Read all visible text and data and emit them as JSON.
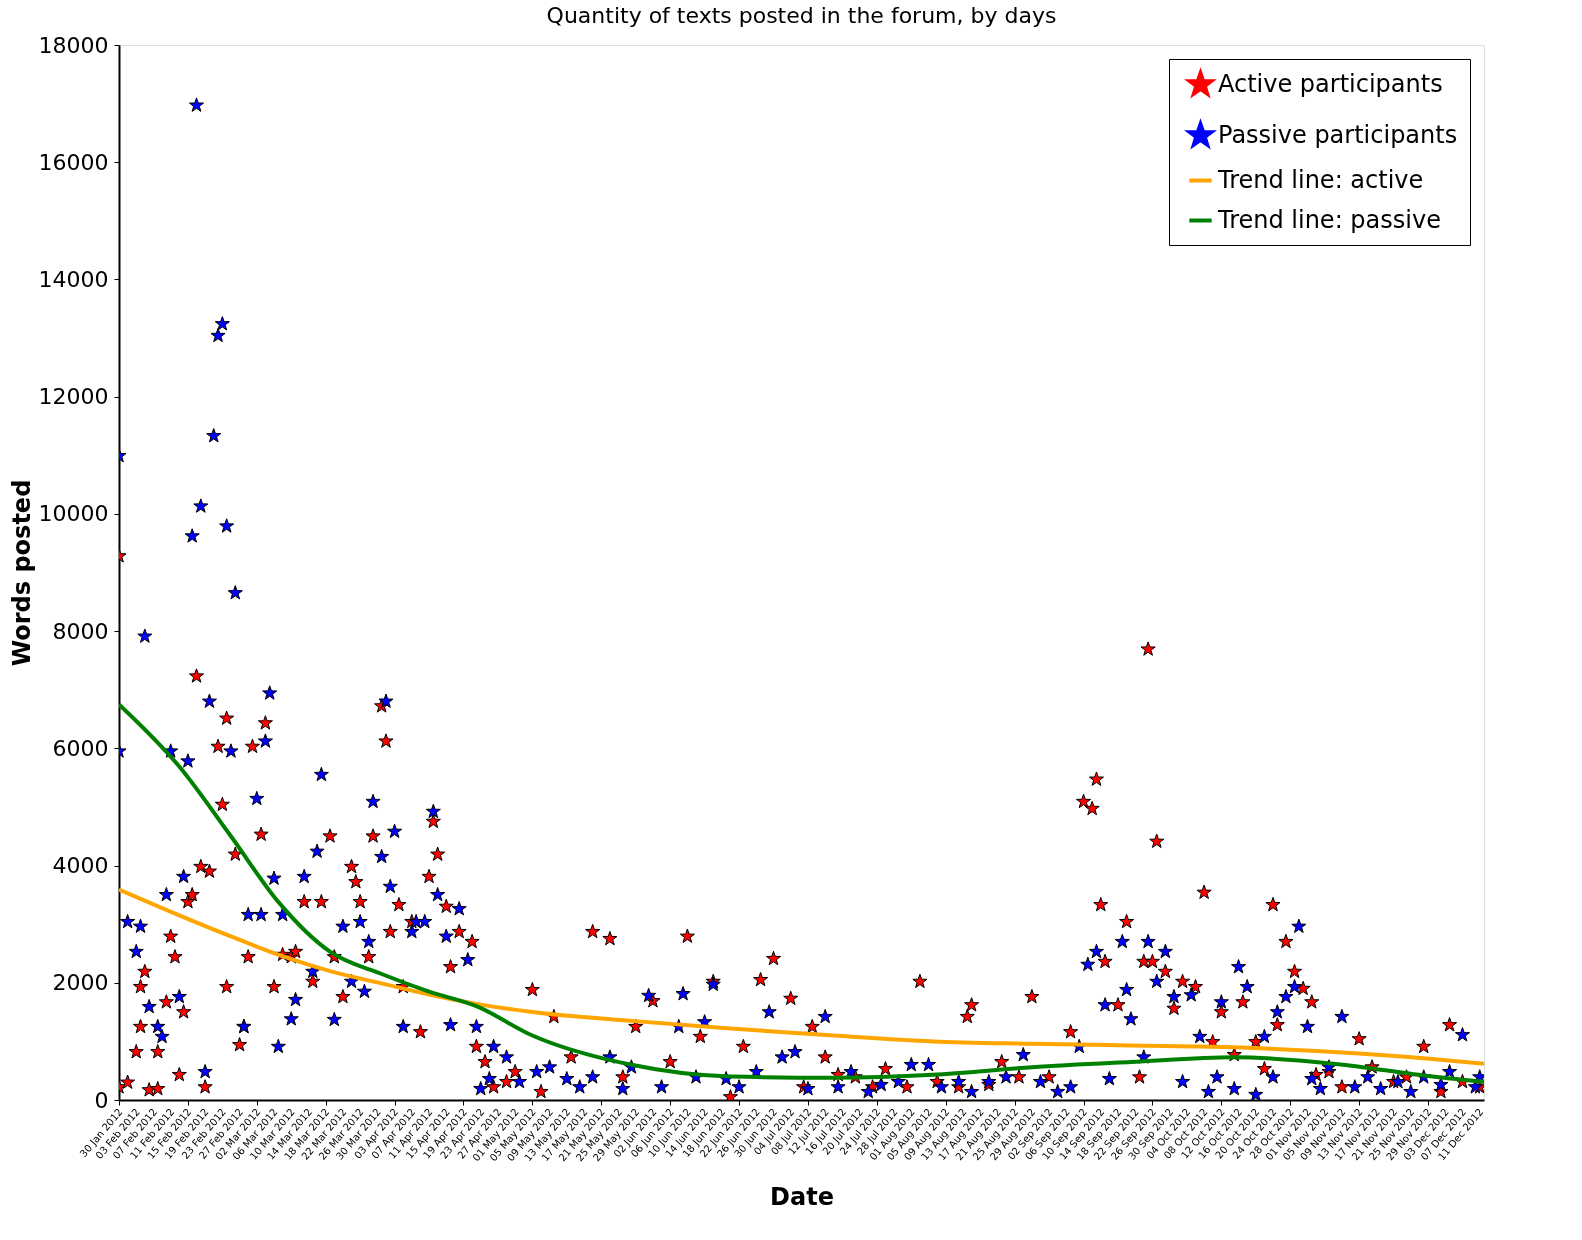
{
  "chart_data": {
    "type": "scatter",
    "title": "Quantity of texts posted in the forum, by days",
    "xlabel": "Date",
    "ylabel": "Words posted",
    "legend": "top right",
    "grid": false,
    "marker": "star",
    "xlim": [
      "2012-01-30",
      "2012-12-12"
    ],
    "xticks": [
      {
        "value": "2012-01-30",
        "label": "30 Jan 2012"
      },
      {
        "value": "2012-02-03",
        "label": "03 Feb 2012"
      },
      {
        "value": "2012-02-07",
        "label": "07 Feb 2012"
      },
      {
        "value": "2012-02-11",
        "label": "11 Feb 2012"
      },
      {
        "value": "2012-02-15",
        "label": "15 Feb 2012"
      },
      {
        "value": "2012-02-19",
        "label": "19 Feb 2012"
      },
      {
        "value": "2012-02-23",
        "label": "23 Feb 2012"
      },
      {
        "value": "2012-02-27",
        "label": "27 Feb 2012"
      },
      {
        "value": "2012-03-02",
        "label": "02 Mar 2012"
      },
      {
        "value": "2012-03-06",
        "label": "06 Mar 2012"
      },
      {
        "value": "2012-03-10",
        "label": "10 Mar 2012"
      },
      {
        "value": "2012-03-14",
        "label": "14 Mar 2012"
      },
      {
        "value": "2012-03-18",
        "label": "18 Mar 2012"
      },
      {
        "value": "2012-03-22",
        "label": "22 Mar 2012"
      },
      {
        "value": "2012-03-26",
        "label": "26 Mar 2012"
      },
      {
        "value": "2012-03-30",
        "label": "30 Mar 2012"
      },
      {
        "value": "2012-04-03",
        "label": "03 Apr 2012"
      },
      {
        "value": "2012-04-07",
        "label": "07 Apr 2012"
      },
      {
        "value": "2012-04-11",
        "label": "11 Apr 2012"
      },
      {
        "value": "2012-04-15",
        "label": "15 Apr 2012"
      },
      {
        "value": "2012-04-19",
        "label": "19 Apr 2012"
      },
      {
        "value": "2012-04-23",
        "label": "23 Apr 2012"
      },
      {
        "value": "2012-04-27",
        "label": "27 Apr 2012"
      },
      {
        "value": "2012-05-01",
        "label": "01 May 2012"
      },
      {
        "value": "2012-05-05",
        "label": "05 May 2012"
      },
      {
        "value": "2012-05-09",
        "label": "09 May 2012"
      },
      {
        "value": "2012-05-13",
        "label": "13 May 2012"
      },
      {
        "value": "2012-05-17",
        "label": "17 May 2012"
      },
      {
        "value": "2012-05-21",
        "label": "21 May 2012"
      },
      {
        "value": "2012-05-25",
        "label": "25 May 2012"
      },
      {
        "value": "2012-05-29",
        "label": "29 May 2012"
      },
      {
        "value": "2012-06-02",
        "label": "02 Jun 2012"
      },
      {
        "value": "2012-06-06",
        "label": "06 Jun 2012"
      },
      {
        "value": "2012-06-10",
        "label": "10 Jun 2012"
      },
      {
        "value": "2012-06-14",
        "label": "14 Jun 2012"
      },
      {
        "value": "2012-06-18",
        "label": "18 Jun 2012"
      },
      {
        "value": "2012-06-22",
        "label": "22 Jun 2012"
      },
      {
        "value": "2012-06-26",
        "label": "26 Jun 2012"
      },
      {
        "value": "2012-06-30",
        "label": "30 Jun 2012"
      },
      {
        "value": "2012-07-04",
        "label": "04 Jul 2012"
      },
      {
        "value": "2012-07-08",
        "label": "08 Jul 2012"
      },
      {
        "value": "2012-07-12",
        "label": "12 Jul 2012"
      },
      {
        "value": "2012-07-16",
        "label": "16 Jul 2012"
      },
      {
        "value": "2012-07-20",
        "label": "20 Jul 2012"
      },
      {
        "value": "2012-07-24",
        "label": "24 Jul 2012"
      },
      {
        "value": "2012-07-28",
        "label": "28 Jul 2012"
      },
      {
        "value": "2012-08-01",
        "label": "01 Aug 2012"
      },
      {
        "value": "2012-08-05",
        "label": "05 Aug 2012"
      },
      {
        "value": "2012-08-09",
        "label": "09 Aug 2012"
      },
      {
        "value": "2012-08-13",
        "label": "13 Aug 2012"
      },
      {
        "value": "2012-08-17",
        "label": "17 Aug 2012"
      },
      {
        "value": "2012-08-21",
        "label": "21 Aug 2012"
      },
      {
        "value": "2012-08-25",
        "label": "25 Aug 2012"
      },
      {
        "value": "2012-08-29",
        "label": "29 Aug 2012"
      },
      {
        "value": "2012-09-02",
        "label": "02 Sep 2012"
      },
      {
        "value": "2012-09-06",
        "label": "06 Sep 2012"
      },
      {
        "value": "2012-09-10",
        "label": "10 Sep 2012"
      },
      {
        "value": "2012-09-14",
        "label": "14 Sep 2012"
      },
      {
        "value": "2012-09-18",
        "label": "18 Sep 2012"
      },
      {
        "value": "2012-09-22",
        "label": "22 Sep 2012"
      },
      {
        "value": "2012-09-26",
        "label": "26 Sep 2012"
      },
      {
        "value": "2012-09-30",
        "label": "30 Sep 2012"
      },
      {
        "value": "2012-10-04",
        "label": "04 Oct 2012"
      },
      {
        "value": "2012-10-08",
        "label": "08 Oct 2012"
      },
      {
        "value": "2012-10-12",
        "label": "12 Oct 2012"
      },
      {
        "value": "2012-10-16",
        "label": "16 Oct 2012"
      },
      {
        "value": "2012-10-20",
        "label": "20 Oct 2012"
      },
      {
        "value": "2012-10-24",
        "label": "24 Oct 2012"
      },
      {
        "value": "2012-10-28",
        "label": "28 Oct 2012"
      },
      {
        "value": "2012-11-01",
        "label": "01 Nov 2012"
      },
      {
        "value": "2012-11-05",
        "label": "05 Nov 2012"
      },
      {
        "value": "2012-11-09",
        "label": "09 Nov 2012"
      },
      {
        "value": "2012-11-13",
        "label": "13 Nov 2012"
      },
      {
        "value": "2012-11-17",
        "label": "17 Nov 2012"
      },
      {
        "value": "2012-11-21",
        "label": "21 Nov 2012"
      },
      {
        "value": "2012-11-25",
        "label": "25 Nov 2012"
      },
      {
        "value": "2012-11-29",
        "label": "29 Nov 2012"
      },
      {
        "value": "2012-12-03",
        "label": "03 Dec 2012"
      },
      {
        "value": "2012-12-07",
        "label": "07 Dec 2012"
      },
      {
        "value": "2012-12-11",
        "label": "11 Dec 2012"
      }
    ],
    "ylim": [
      0,
      18000
    ],
    "yticks": [
      0,
      2000,
      4000,
      6000,
      8000,
      10000,
      12000,
      14000,
      16000,
      18000
    ],
    "series": [
      {
        "name": "Active participants",
        "type": "scatter",
        "color": "#ff0000",
        "x": [
          "2012-01-30",
          "2012-01-30",
          "2012-02-01",
          "2012-02-03",
          "2012-02-04",
          "2012-02-04",
          "2012-02-05",
          "2012-02-06",
          "2012-02-08",
          "2012-02-08",
          "2012-02-10",
          "2012-02-11",
          "2012-02-12",
          "2012-02-13",
          "2012-02-14",
          "2012-02-15",
          "2012-02-16",
          "2012-02-17",
          "2012-02-18",
          "2012-02-19",
          "2012-02-20",
          "2012-02-22",
          "2012-02-23",
          "2012-02-24",
          "2012-02-24",
          "2012-02-26",
          "2012-02-27",
          "2012-02-28",
          "2012-02-29",
          "2012-03-01",
          "2012-03-03",
          "2012-03-04",
          "2012-03-06",
          "2012-03-08",
          "2012-03-10",
          "2012-03-11",
          "2012-03-13",
          "2012-03-15",
          "2012-03-17",
          "2012-03-19",
          "2012-03-20",
          "2012-03-22",
          "2012-03-24",
          "2012-03-25",
          "2012-03-26",
          "2012-03-28",
          "2012-03-29",
          "2012-03-31",
          "2012-04-01",
          "2012-04-02",
          "2012-04-04",
          "2012-04-05",
          "2012-04-07",
          "2012-04-09",
          "2012-04-11",
          "2012-04-12",
          "2012-04-13",
          "2012-04-15",
          "2012-04-16",
          "2012-04-18",
          "2012-04-21",
          "2012-04-22",
          "2012-04-24",
          "2012-04-26",
          "2012-04-29",
          "2012-05-01",
          "2012-05-05",
          "2012-05-07",
          "2012-05-10",
          "2012-05-14",
          "2012-05-19",
          "2012-05-23",
          "2012-05-26",
          "2012-05-29",
          "2012-06-02",
          "2012-06-06",
          "2012-06-10",
          "2012-06-13",
          "2012-06-16",
          "2012-06-20",
          "2012-06-23",
          "2012-06-27",
          "2012-06-30",
          "2012-07-04",
          "2012-07-07",
          "2012-07-09",
          "2012-07-12",
          "2012-07-15",
          "2012-07-19",
          "2012-07-23",
          "2012-07-26",
          "2012-07-31",
          "2012-08-03",
          "2012-08-07",
          "2012-08-12",
          "2012-08-14",
          "2012-08-15",
          "2012-08-19",
          "2012-08-22",
          "2012-08-26",
          "2012-08-29",
          "2012-09-02",
          "2012-09-07",
          "2012-09-10",
          "2012-09-12",
          "2012-09-13",
          "2012-09-14",
          "2012-09-15",
          "2012-09-18",
          "2012-09-20",
          "2012-09-23",
          "2012-09-24",
          "2012-09-25",
          "2012-09-26",
          "2012-09-27",
          "2012-09-29",
          "2012-10-01",
          "2012-10-03",
          "2012-10-06",
          "2012-10-08",
          "2012-10-10",
          "2012-10-12",
          "2012-10-15",
          "2012-10-17",
          "2012-10-20",
          "2012-10-22",
          "2012-10-24",
          "2012-10-25",
          "2012-10-27",
          "2012-10-29",
          "2012-10-31",
          "2012-11-02",
          "2012-11-03",
          "2012-11-06",
          "2012-11-09",
          "2012-11-13",
          "2012-11-16",
          "2012-11-21",
          "2012-11-24",
          "2012-11-28",
          "2012-12-02",
          "2012-12-04",
          "2012-12-07",
          "2012-12-11"
        ],
        "values": [
          9280,
          220,
          300,
          820,
          1250,
          1930,
          2190,
          170,
          190,
          820,
          1670,
          2790,
          2440,
          430,
          1500,
          3380,
          3500,
          7230,
          3980,
          220,
          3900,
          6030,
          5040,
          6510,
          1930,
          4190,
          940,
          1250,
          2440,
          6030,
          4530,
          6430,
          1930,
          2480,
          2440,
          2530,
          3380,
          2020,
          3380,
          4500,
          2440,
          1760,
          3980,
          3720,
          3380,
          2440,
          4500,
          6720,
          6120,
          2870,
          3330,
          1930,
          3040,
          1160,
          3810,
          4750,
          4190,
          3300,
          2270,
          2870,
          2700,
          910,
          650,
          220,
          310,
          480,
          1880,
          140,
          1420,
          730,
          2870,
          2750,
          390,
          1250,
          1690,
          650,
          2790,
          1080,
          2020,
          50,
          910,
          2050,
          2410,
          1730,
          220,
          1250,
          730,
          430,
          390,
          220,
          530,
          220,
          2020,
          310,
          220,
          1420,
          1620,
          260,
          650,
          390,
          1760,
          390,
          1160,
          5090,
          4970,
          5470,
          3330,
          2360,
          1620,
          3040,
          390,
          2360,
          7690,
          2360,
          4410,
          2190,
          1560,
          2020,
          1930,
          3540,
          990,
          1500,
          770,
          1670,
          990,
          530,
          3330,
          1280,
          2700,
          2190,
          1900,
          1670,
          430,
          480,
          220,
          1040,
          560,
          310,
          390,
          910,
          140,
          1280,
          310,
          220
        ]
      },
      {
        "name": "Passive participants",
        "type": "scatter",
        "color": "#0000ff",
        "x": [
          "2012-01-30",
          "2012-01-30",
          "2012-02-01",
          "2012-02-03",
          "2012-02-04",
          "2012-02-05",
          "2012-02-06",
          "2012-02-08",
          "2012-02-09",
          "2012-02-10",
          "2012-02-11",
          "2012-02-13",
          "2012-02-14",
          "2012-02-15",
          "2012-02-16",
          "2012-02-17",
          "2012-02-18",
          "2012-02-19",
          "2012-02-20",
          "2012-02-21",
          "2012-02-22",
          "2012-02-23",
          "2012-02-24",
          "2012-02-25",
          "2012-02-26",
          "2012-02-28",
          "2012-02-29",
          "2012-03-02",
          "2012-03-03",
          "2012-03-04",
          "2012-03-05",
          "2012-03-06",
          "2012-03-07",
          "2012-03-08",
          "2012-03-10",
          "2012-03-11",
          "2012-03-13",
          "2012-03-15",
          "2012-03-16",
          "2012-03-17",
          "2012-03-20",
          "2012-03-22",
          "2012-03-24",
          "2012-03-26",
          "2012-03-27",
          "2012-03-28",
          "2012-03-29",
          "2012-03-31",
          "2012-04-01",
          "2012-04-02",
          "2012-04-03",
          "2012-04-05",
          "2012-04-07",
          "2012-04-08",
          "2012-04-10",
          "2012-04-12",
          "2012-04-13",
          "2012-04-15",
          "2012-04-16",
          "2012-04-18",
          "2012-04-20",
          "2012-04-22",
          "2012-04-23",
          "2012-04-25",
          "2012-04-26",
          "2012-04-29",
          "2012-05-02",
          "2012-05-06",
          "2012-05-09",
          "2012-05-13",
          "2012-05-16",
          "2012-05-19",
          "2012-05-23",
          "2012-05-26",
          "2012-05-28",
          "2012-06-01",
          "2012-06-04",
          "2012-06-08",
          "2012-06-09",
          "2012-06-12",
          "2012-06-14",
          "2012-06-16",
          "2012-06-19",
          "2012-06-22",
          "2012-06-26",
          "2012-06-29",
          "2012-07-02",
          "2012-07-05",
          "2012-07-08",
          "2012-07-12",
          "2012-07-15",
          "2012-07-18",
          "2012-07-22",
          "2012-07-25",
          "2012-07-29",
          "2012-08-01",
          "2012-08-05",
          "2012-08-08",
          "2012-08-12",
          "2012-08-15",
          "2012-08-19",
          "2012-08-23",
          "2012-08-27",
          "2012-08-31",
          "2012-09-04",
          "2012-09-07",
          "2012-09-09",
          "2012-09-11",
          "2012-09-13",
          "2012-09-15",
          "2012-09-16",
          "2012-09-19",
          "2012-09-20",
          "2012-09-21",
          "2012-09-24",
          "2012-09-25",
          "2012-09-27",
          "2012-09-29",
          "2012-10-01",
          "2012-10-03",
          "2012-10-05",
          "2012-10-07",
          "2012-10-09",
          "2012-10-11",
          "2012-10-12",
          "2012-10-15",
          "2012-10-16",
          "2012-10-18",
          "2012-10-20",
          "2012-10-22",
          "2012-10-24",
          "2012-10-25",
          "2012-10-27",
          "2012-10-29",
          "2012-10-30",
          "2012-11-01",
          "2012-11-02",
          "2012-11-04",
          "2012-11-06",
          "2012-11-09",
          "2012-11-12",
          "2012-11-15",
          "2012-11-18",
          "2012-11-22",
          "2012-11-25",
          "2012-11-28",
          "2012-12-02",
          "2012-12-04",
          "2012-12-07",
          "2012-12-10",
          "2012-12-11"
        ],
        "values": [
          10990,
          5950,
          3040,
          2530,
          2960,
          7910,
          1590,
          1250,
          1080,
          3500,
          5950,
          1760,
          3810,
          5780,
          9620,
          16970,
          10130,
          480,
          6800,
          11330,
          13040,
          13240,
          9790,
          5950,
          8650,
          1250,
          3160,
          5140,
          3160,
          6120,
          6940,
          3780,
          910,
          3160,
          1380,
          1710,
          3810,
          2190,
          4240,
          5550,
          1370,
          2960,
          2020,
          3040,
          1850,
          2700,
          5090,
          4150,
          6800,
          3640,
          4580,
          1250,
          2870,
          3040,
          3040,
          4920,
          3500,
          2790,
          1280,
          3260,
          2390,
          1250,
          190,
          360,
          910,
          730,
          310,
          480,
          560,
          360,
          220,
          390,
          730,
          190,
          560,
          1780,
          220,
          1250,
          1810,
          390,
          1330,
          1970,
          360,
          220,
          480,
          1500,
          730,
          820,
          190,
          1420,
          220,
          480,
          140,
          260,
          310,
          600,
          600,
          220,
          310,
          140,
          310,
          390,
          770,
          310,
          140,
          220,
          910,
          2310,
          2530,
          1620,
          360,
          2700,
          1880,
          1380,
          730,
          2700,
          2020,
          2530,
          1760,
          310,
          1790,
          1080,
          140,
          390,
          1670,
          190,
          2270,
          1930,
          90,
          1080,
          390,
          1500,
          1760,
          1930,
          2960,
          1250,
          360,
          190,
          560,
          1420,
          220,
          390,
          190,
          310,
          140,
          390,
          260,
          480,
          1110,
          220,
          390
        ]
      },
      {
        "name": "Trend line: active",
        "type": "line",
        "marker": "none",
        "color": "#ffa500",
        "x": [
          "2012-01-30",
          "2012-02-13",
          "2012-02-25",
          "2012-03-07",
          "2012-03-19",
          "2012-03-31",
          "2012-04-11",
          "2012-04-22",
          "2012-05-05",
          "2012-05-28",
          "2012-06-20",
          "2012-07-14",
          "2012-08-06",
          "2012-08-29",
          "2012-09-21",
          "2012-10-15",
          "2012-11-07",
          "2012-11-30",
          "2012-12-12"
        ],
        "values": [
          3590,
          3150,
          2790,
          2480,
          2200,
          1990,
          1800,
          1640,
          1500,
          1350,
          1220,
          1100,
          1000,
          960,
          930,
          900,
          820,
          700,
          620
        ]
      },
      {
        "name": "Trend line: passive",
        "type": "line",
        "marker": "none",
        "color": "#008000",
        "x": [
          "2012-01-30",
          "2012-02-13",
          "2012-02-25",
          "2012-03-07",
          "2012-03-19",
          "2012-03-31",
          "2012-04-11",
          "2012-04-22",
          "2012-05-05",
          "2012-05-28",
          "2012-06-20",
          "2012-07-14",
          "2012-08-06",
          "2012-08-29",
          "2012-09-21",
          "2012-10-15",
          "2012-11-07",
          "2012-11-30",
          "2012-12-12"
        ],
        "values": [
          6750,
          5690,
          4500,
          3380,
          2530,
          2150,
          1850,
          1600,
          1100,
          600,
          400,
          380,
          430,
          560,
          650,
          730,
          620,
          400,
          310
        ]
      }
    ]
  }
}
